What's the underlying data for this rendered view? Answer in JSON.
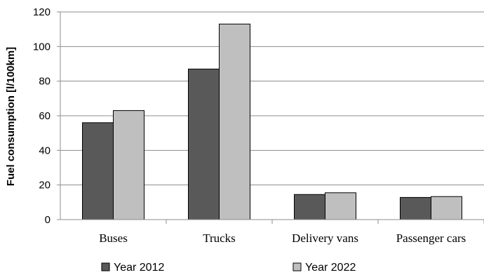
{
  "chart_data": {
    "type": "bar",
    "title": "",
    "xlabel": "",
    "ylabel": "Fuel consumption [l/100km]",
    "ylim": [
      0,
      120
    ],
    "yticks": [
      0,
      20,
      40,
      60,
      80,
      100,
      120
    ],
    "grid": true,
    "legend_position": "bottom",
    "categories": [
      "Buses",
      "Trucks",
      "Delivery vans",
      "Passenger cars"
    ],
    "series": [
      {
        "name": "Year 2012",
        "color": "#595959",
        "values": [
          56,
          87,
          14.5,
          12.8
        ]
      },
      {
        "name": "Year 2022",
        "color": "#bfbfbf",
        "values": [
          63,
          113,
          15.5,
          13.3
        ]
      }
    ]
  }
}
